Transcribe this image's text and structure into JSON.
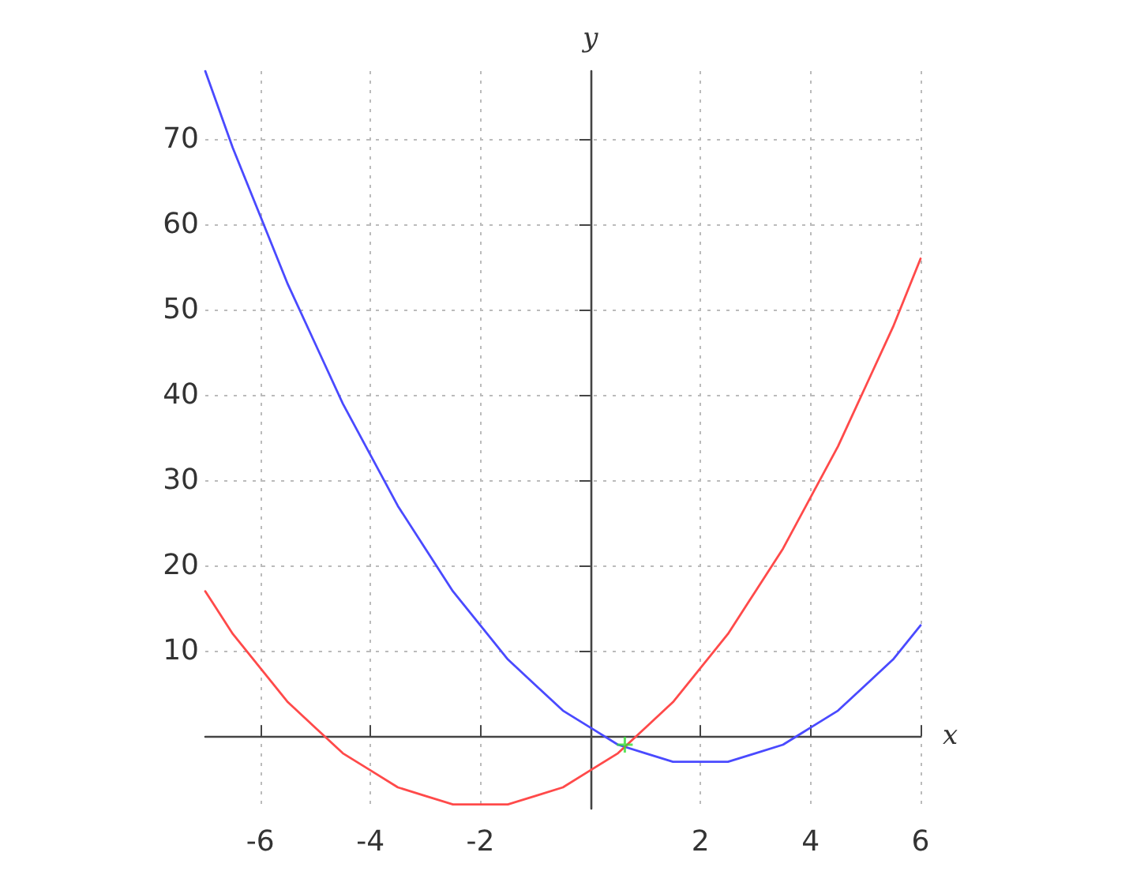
{
  "chart_data": {
    "type": "line",
    "xlabel": "x",
    "ylabel": "y",
    "xlim": [
      -7,
      6
    ],
    "ylim": [
      -8.5,
      78
    ],
    "xticks": [
      -6,
      -4,
      -2,
      2,
      4,
      6
    ],
    "yticks": [
      10,
      20,
      30,
      40,
      50,
      60,
      70
    ],
    "grid": true,
    "series": [
      {
        "color": "#4a4aff",
        "x": [
          -7,
          -6.5,
          -6,
          -5.5,
          -5,
          -4.5,
          -4,
          -3.5,
          -3,
          -2.5,
          -2,
          -1.5,
          -1,
          -0.5,
          0,
          0.5,
          1,
          1.5,
          2,
          2.5,
          3,
          3.5,
          4,
          4.5,
          5,
          5.5,
          6
        ],
        "values": [
          78,
          69,
          61,
          53,
          46,
          39,
          33,
          27,
          22,
          17,
          13,
          9,
          6,
          3,
          1,
          -1,
          -2,
          -3,
          -3,
          -3,
          -2,
          -1,
          1,
          3,
          6,
          9,
          13
        ]
      },
      {
        "color": "#ff4a4a",
        "x": [
          -7,
          -6.5,
          -6,
          -5.5,
          -5,
          -4.5,
          -4,
          -3.5,
          -3,
          -2.5,
          -2,
          -1.5,
          -1,
          -0.5,
          0,
          0.5,
          1,
          1.5,
          2,
          2.5,
          3,
          3.5,
          4,
          4.5,
          5,
          5.5,
          6
        ],
        "values": [
          17,
          12,
          8,
          4,
          1,
          -2,
          -4,
          -6,
          -7,
          -8,
          -8,
          -8,
          -7,
          -6,
          -4,
          -2,
          1,
          4,
          8,
          12,
          17,
          22,
          28,
          34,
          41,
          48,
          56
        ]
      },
      {
        "type": "scatter",
        "marker": "cross",
        "color": "#33dd33",
        "x": [
          0.625
        ],
        "values": [
          -1
        ]
      }
    ]
  }
}
